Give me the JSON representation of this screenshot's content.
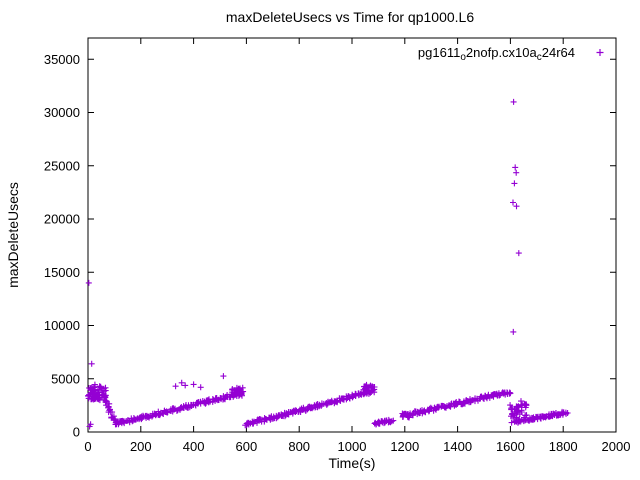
{
  "window": {
    "background": "#ffffff"
  },
  "chart_data": {
    "type": "scatter",
    "title": "maxDeleteUsecs vs Time for qp1000.L6",
    "xlabel": "Time(s)",
    "ylabel": "maxDeleteUsecs",
    "xlim": [
      0,
      2000
    ],
    "ylim": [
      0,
      37000
    ],
    "xticks": [
      0,
      200,
      400,
      600,
      800,
      1000,
      1200,
      1400,
      1600,
      1800,
      2000
    ],
    "yticks": [
      0,
      5000,
      10000,
      15000,
      20000,
      25000,
      30000,
      35000
    ],
    "grid": false,
    "border_color": "#000000",
    "legend": {
      "position": "top-right",
      "marker": "plus",
      "display_text": "pg1611o2nofp.cx10ac24r64",
      "label_parts": [
        {
          "text": "pg1611"
        },
        {
          "text": "o",
          "sub": true
        },
        {
          "text": "2nofp.cx10a"
        },
        {
          "text": "c",
          "sub": true
        },
        {
          "text": "24r64"
        }
      ]
    },
    "series": [
      {
        "name": "pg1611o2nofp.cx10ac24r64",
        "color": "#9400D3",
        "marker": "plus",
        "segments": [
          {
            "mode": "scatter",
            "x0": 0,
            "x1": 68,
            "y0": 2950,
            "y1": 4250,
            "n": 70,
            "seed": 1
          },
          {
            "mode": "linear",
            "x0": 58,
            "x1": 108,
            "y0": 3250,
            "y1": 900,
            "jx": 6,
            "jy": 260,
            "n": 26,
            "seed": 2
          },
          {
            "mode": "linear",
            "x0": 105,
            "x1": 585,
            "y0": 780,
            "y1": 3650,
            "jx": 5,
            "jy": 170,
            "n": 170,
            "seed": 3
          },
          {
            "mode": "scatter",
            "x0": 545,
            "x1": 595,
            "y0": 3350,
            "y1": 4150,
            "n": 30,
            "seed": 4
          },
          {
            "mode": "linear",
            "x0": 596,
            "x1": 1080,
            "y0": 680,
            "y1": 3850,
            "jx": 5,
            "jy": 170,
            "n": 170,
            "seed": 5
          },
          {
            "mode": "scatter",
            "x0": 1040,
            "x1": 1088,
            "y0": 3600,
            "y1": 4350,
            "n": 22,
            "seed": 6
          },
          {
            "mode": "linear",
            "x0": 1086,
            "x1": 1155,
            "y0": 820,
            "y1": 1080,
            "jx": 5,
            "jy": 120,
            "n": 28,
            "seed": 7
          },
          {
            "mode": "scatter",
            "x0": 1190,
            "x1": 1220,
            "y0": 1350,
            "y1": 1750,
            "n": 14,
            "seed": 8
          },
          {
            "mode": "linear",
            "x0": 1205,
            "x1": 1598,
            "y0": 1580,
            "y1": 3780,
            "jx": 5,
            "jy": 170,
            "n": 140,
            "seed": 9
          },
          {
            "mode": "scatter",
            "x0": 1598,
            "x1": 1662,
            "y0": 850,
            "y1": 2650,
            "n": 55,
            "seed": 10
          },
          {
            "mode": "linear",
            "x0": 1660,
            "x1": 1812,
            "y0": 1150,
            "y1": 1800,
            "jx": 5,
            "jy": 150,
            "n": 70,
            "seed": 11
          }
        ],
        "outliers": [
          [
            3,
            14000
          ],
          [
            14,
            6400
          ],
          [
            26,
            4450
          ],
          [
            44,
            4300
          ],
          [
            6,
            520
          ],
          [
            10,
            720
          ],
          [
            513,
            5250
          ],
          [
            332,
            4300
          ],
          [
            355,
            4620
          ],
          [
            368,
            4380
          ],
          [
            400,
            4470
          ],
          [
            427,
            4200
          ],
          [
            586,
            4150
          ],
          [
            1055,
            4420
          ],
          [
            1070,
            4360
          ],
          [
            1612,
            31000
          ],
          [
            1618,
            24850
          ],
          [
            1622,
            24350
          ],
          [
            1615,
            23350
          ],
          [
            1610,
            21550
          ],
          [
            1623,
            21200
          ],
          [
            1632,
            16800
          ],
          [
            1611,
            9400
          ],
          [
            1640,
            2900
          ],
          [
            1660,
            2600
          ]
        ]
      }
    ]
  }
}
